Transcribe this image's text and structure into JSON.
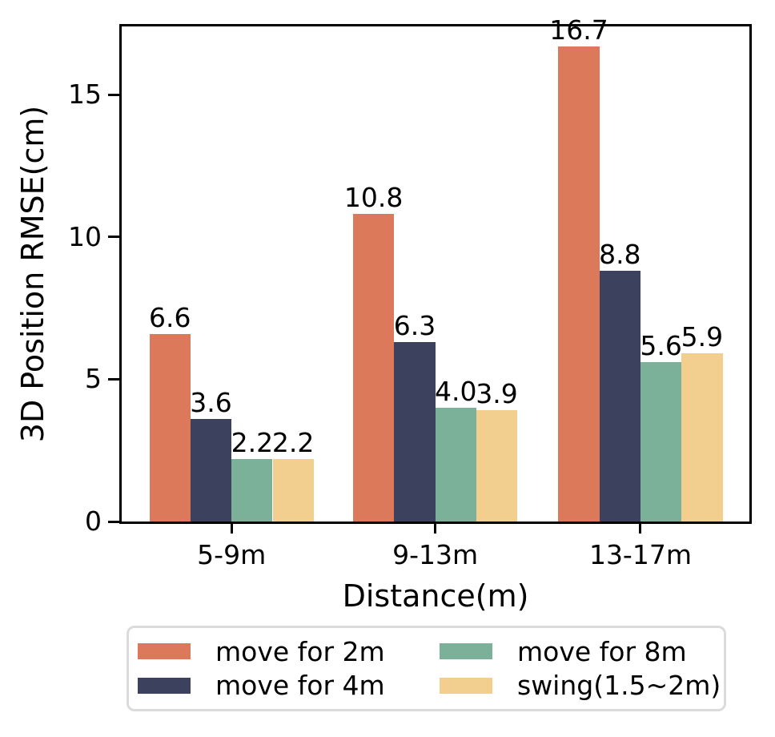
{
  "chart_data": {
    "type": "bar",
    "title": "",
    "xlabel": "Distance(m)",
    "ylabel": "3D Position RMSE(cm)",
    "categories": [
      "5-9m",
      "9-13m",
      "13-17m"
    ],
    "series": [
      {
        "name": "move for 2m",
        "color": "#DC795B",
        "values": [
          6.6,
          10.8,
          16.7
        ],
        "value_labels": [
          "6.6",
          "10.8",
          "16.7"
        ]
      },
      {
        "name": "move for 4m",
        "color": "#3C425E",
        "values": [
          3.6,
          6.3,
          8.8
        ],
        "value_labels": [
          "3.6",
          "6.3",
          "8.8"
        ]
      },
      {
        "name": "move for 8m",
        "color": "#7BB198",
        "values": [
          2.2,
          4.0,
          5.6
        ],
        "value_labels": [
          "2.2",
          "4.0",
          "5.6"
        ]
      },
      {
        "name": "swing(1.5~2m)",
        "color": "#F2CF8E",
        "values": [
          2.2,
          3.9,
          5.9
        ],
        "value_labels": [
          "2.2",
          "3.9",
          "5.9"
        ]
      }
    ],
    "yticks": [
      0,
      5,
      10,
      15
    ],
    "ylim": [
      0,
      17.4
    ],
    "grid": false,
    "legend_position": "bottom",
    "legend_columns": 2,
    "background": "#ffffff",
    "spine_color": "#000000",
    "text_color": "#000000"
  }
}
